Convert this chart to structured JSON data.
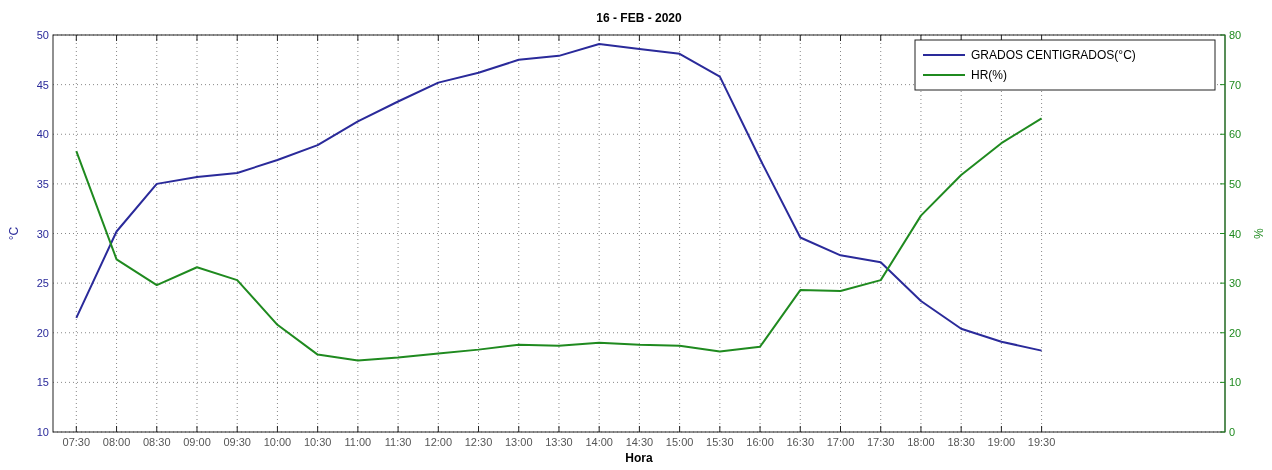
{
  "chart_data": {
    "type": "line",
    "title": "16 - FEB - 2020",
    "xlabel": "Hora",
    "ylabel": "°C",
    "y2label": "%",
    "x": [
      7.5,
      8,
      8.5,
      9,
      9.5,
      10,
      10.5,
      11,
      11.5,
      12,
      12.5,
      13,
      13.5,
      14,
      14.5,
      15,
      15.5,
      16,
      16.5,
      17,
      17.5,
      18,
      18.5,
      19,
      19.5
    ],
    "xlim": [
      7.21,
      21.78
    ],
    "xticks": [
      {
        "value": 7.5,
        "label": "07:30"
      },
      {
        "value": 8,
        "label": "08:00"
      },
      {
        "value": 8.5,
        "label": "08:30"
      },
      {
        "value": 9,
        "label": "09:00"
      },
      {
        "value": 9.5,
        "label": "09:30"
      },
      {
        "value": 10,
        "label": "10:00"
      },
      {
        "value": 10.5,
        "label": "10:30"
      },
      {
        "value": 11,
        "label": "11:00"
      },
      {
        "value": 11.5,
        "label": "11:30"
      },
      {
        "value": 12,
        "label": "12:00"
      },
      {
        "value": 12.5,
        "label": "12:30"
      },
      {
        "value": 13,
        "label": "13:00"
      },
      {
        "value": 13.5,
        "label": "13:30"
      },
      {
        "value": 14,
        "label": "14:00"
      },
      {
        "value": 14.5,
        "label": "14:30"
      },
      {
        "value": 15,
        "label": "15:00"
      },
      {
        "value": 15.5,
        "label": "15:30"
      },
      {
        "value": 16,
        "label": "16:00"
      },
      {
        "value": 16.5,
        "label": "16:30"
      },
      {
        "value": 17,
        "label": "17:00"
      },
      {
        "value": 17.5,
        "label": "17:30"
      },
      {
        "value": 18,
        "label": "18:00"
      },
      {
        "value": 18.5,
        "label": "18:30"
      },
      {
        "value": 19,
        "label": "19:00"
      },
      {
        "value": 19.5,
        "label": "19:30"
      }
    ],
    "ylim": [
      10,
      50
    ],
    "yticks": [
      10,
      15,
      20,
      25,
      30,
      35,
      40,
      45,
      50
    ],
    "y2lim": [
      0,
      80
    ],
    "y2ticks": [
      0,
      10,
      20,
      30,
      40,
      50,
      60,
      70,
      80
    ],
    "grid": true,
    "legend": "top right",
    "line_style": "solid",
    "series": [
      {
        "name": "GRADOS CENTIGRADOS(°C)",
        "color": "#2a2a9a",
        "values": [
          21.5,
          30.2,
          35,
          35.7,
          36.1,
          37.4,
          38.9,
          41.3,
          43.3,
          45.2,
          46.2,
          47.5,
          47.9,
          49.1,
          48.6,
          48.1,
          45.8,
          37.5,
          29.6,
          27.8,
          27.1,
          23.2,
          20.4,
          19.1,
          18.2
        ]
      },
      {
        "name": "HR(%)",
        "color": "#1f8a1f",
        "axis": "y2",
        "values": [
          56.6,
          34.8,
          29.6,
          33.2,
          30.6,
          21.6,
          15.6,
          14.4,
          15,
          15.8,
          16.6,
          17.6,
          17.4,
          18,
          17.6,
          17.4,
          16.2,
          17.2,
          28.6,
          28.4,
          30.6,
          43.6,
          51.8,
          58.2,
          63.2
        ]
      }
    ]
  }
}
